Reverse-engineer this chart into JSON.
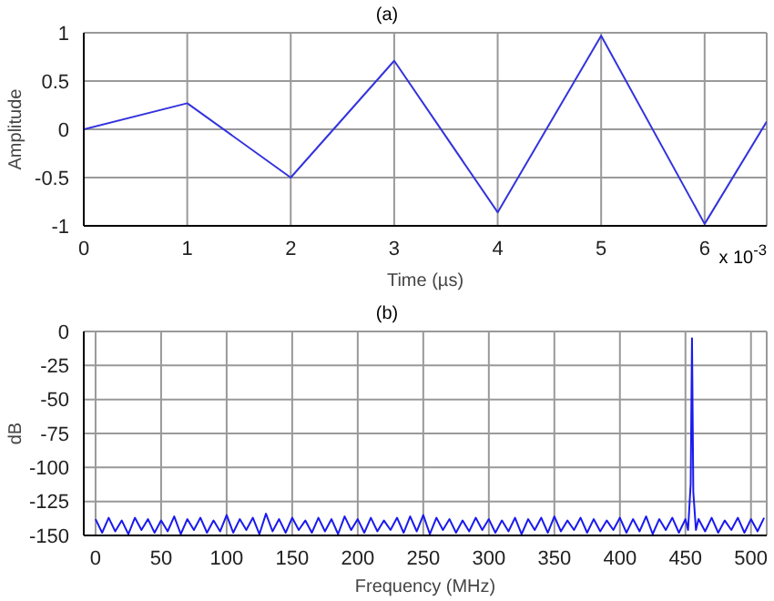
{
  "chart_data": [
    {
      "type": "line",
      "title": "(a)",
      "xlabel": "Time (µs)",
      "ylabel": "Amplitude",
      "annotations": [
        "x 10$^{-3}$"
      ],
      "grid": true,
      "series": [
        {
          "color": "#3333dd",
          "x": [
            0,
            1,
            2,
            3,
            4,
            5,
            6,
            6.6
          ],
          "values": [
            0,
            0.27,
            -0.5,
            0.71,
            -0.86,
            0.97,
            -0.98,
            0.08
          ]
        }
      ],
      "xlim": [
        0,
        6.6
      ],
      "xticks": [
        0,
        1,
        2,
        3,
        4,
        5,
        6
      ],
      "ylim": [
        -1,
        1
      ],
      "yticks": [
        -1,
        -0.5,
        0,
        0.5,
        1
      ]
    },
    {
      "type": "line",
      "title": "(b)",
      "xlabel": "Frequency (MHz)",
      "ylabel": "dB",
      "grid": true,
      "series": [
        {
          "color": "#1a1aee",
          "x": [
            0,
            5,
            10,
            15,
            20,
            25,
            30,
            35,
            40,
            45,
            50,
            55,
            60,
            65,
            70,
            75,
            80,
            85,
            90,
            95,
            100,
            105,
            110,
            115,
            120,
            125,
            130,
            135,
            140,
            145,
            150,
            155,
            160,
            165,
            170,
            175,
            180,
            185,
            190,
            195,
            200,
            205,
            210,
            215,
            220,
            225,
            230,
            235,
            240,
            245,
            250,
            255,
            260,
            265,
            270,
            275,
            280,
            285,
            290,
            295,
            300,
            305,
            310,
            315,
            320,
            325,
            330,
            335,
            340,
            345,
            350,
            355,
            360,
            365,
            370,
            375,
            380,
            385,
            390,
            395,
            400,
            405,
            410,
            415,
            420,
            425,
            430,
            435,
            440,
            445,
            450,
            452,
            454,
            455,
            456,
            458,
            460,
            465,
            470,
            475,
            480,
            485,
            490,
            495,
            500,
            505,
            510
          ],
          "values": [
            -138,
            -148,
            -137,
            -147,
            -139,
            -149,
            -137,
            -146,
            -138,
            -148,
            -139,
            -147,
            -136,
            -149,
            -138,
            -146,
            -137,
            -148,
            -139,
            -147,
            -135,
            -148,
            -138,
            -146,
            -137,
            -149,
            -134,
            -147,
            -138,
            -148,
            -137,
            -146,
            -139,
            -148,
            -137,
            -147,
            -138,
            -149,
            -136,
            -146,
            -138,
            -148,
            -137,
            -147,
            -139,
            -146,
            -137,
            -148,
            -136,
            -147,
            -135,
            -149,
            -137,
            -146,
            -138,
            -148,
            -139,
            -147,
            -137,
            -146,
            -138,
            -148,
            -139,
            -147,
            -137,
            -149,
            -138,
            -146,
            -137,
            -148,
            -136,
            -147,
            -139,
            -146,
            -137,
            -148,
            -138,
            -147,
            -139,
            -146,
            -137,
            -148,
            -138,
            -147,
            -136,
            -149,
            -138,
            -146,
            -137,
            -148,
            -138,
            -146,
            -112,
            -5,
            -118,
            -146,
            -138,
            -147,
            -137,
            -148,
            -139,
            -146,
            -137,
            -148,
            -138,
            -147,
            -137
          ]
        }
      ],
      "xlim": [
        -9,
        512
      ],
      "xticks": [
        0,
        50,
        100,
        150,
        200,
        250,
        300,
        350,
        400,
        450,
        500
      ],
      "ylim": [
        -150,
        0
      ],
      "yticks": [
        -150,
        -125,
        -100,
        -75,
        -50,
        -25,
        0
      ]
    }
  ]
}
